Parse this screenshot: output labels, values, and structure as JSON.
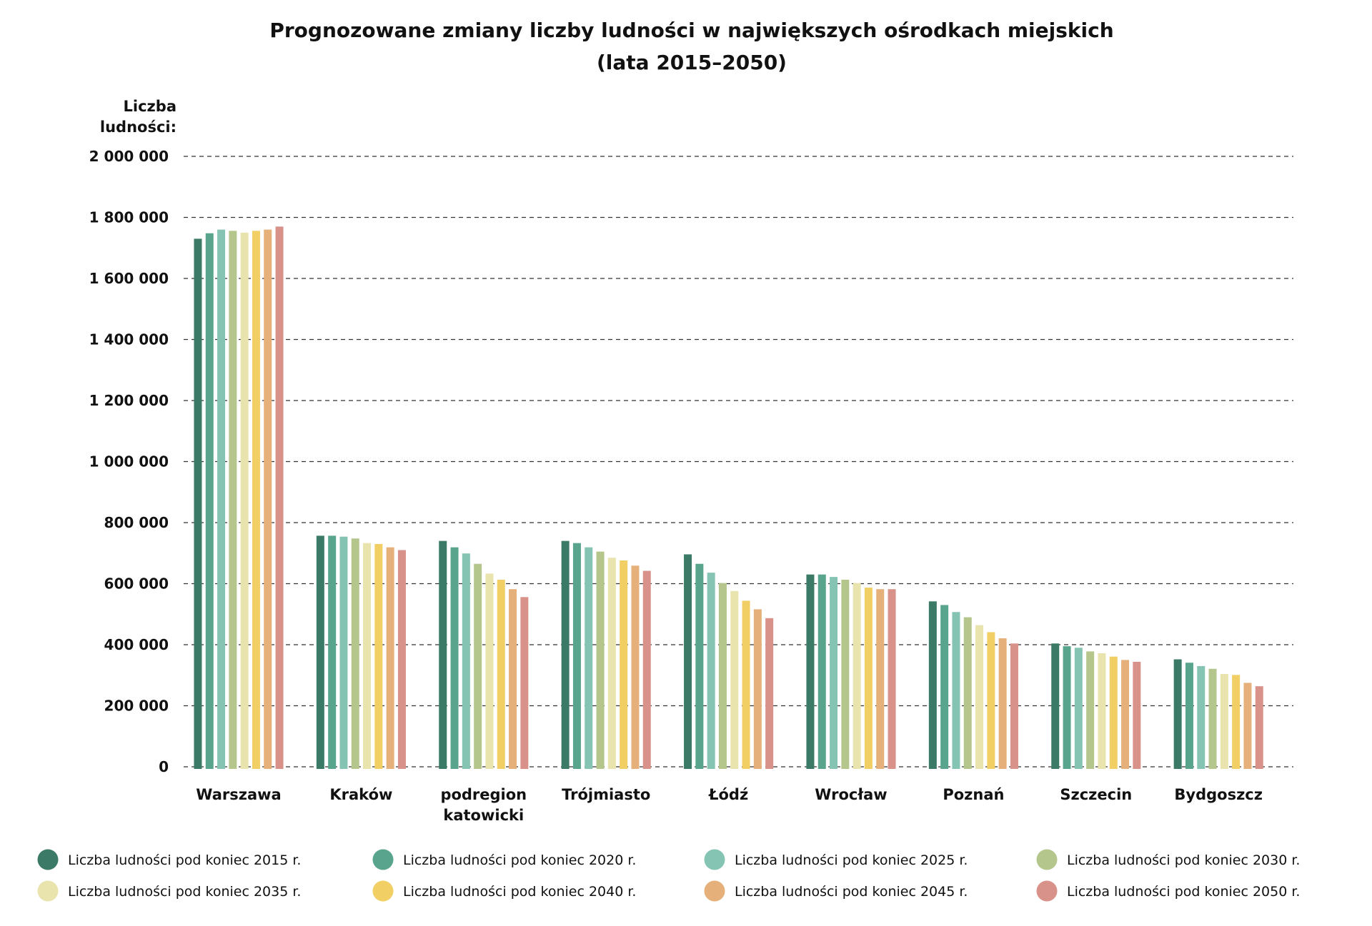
{
  "chart_data": {
    "type": "bar",
    "title": "Prognozowane zmiany liczby ludności w największych ośrodkach miejskich",
    "subtitle": "(lata 2015–2050)",
    "ylabel_line1": "Liczba",
    "ylabel_line2": "ludności:",
    "ylim": [
      0,
      2000000
    ],
    "grid": true,
    "legend_placement": "bottom",
    "y_ticks": [
      {
        "value": 0,
        "label": "0"
      },
      {
        "value": 200000,
        "label": "200 000"
      },
      {
        "value": 400000,
        "label": "400 000"
      },
      {
        "value": 600000,
        "label": "600 000"
      },
      {
        "value": 800000,
        "label": "800 000"
      },
      {
        "value": 1000000,
        "label": "1 000 000"
      },
      {
        "value": 1200000,
        "label": "1 200 000"
      },
      {
        "value": 1400000,
        "label": "1 400 000"
      },
      {
        "value": 1600000,
        "label": "1 600 000"
      },
      {
        "value": 1800000,
        "label": "1 800 000"
      },
      {
        "value": 2000000,
        "label": "2 000 000"
      }
    ],
    "categories": [
      [
        "Warszawa"
      ],
      [
        "Kraków"
      ],
      [
        "podregion",
        "katowicki"
      ],
      [
        "Trójmiasto"
      ],
      [
        "Łódź"
      ],
      [
        "Wrocław"
      ],
      [
        "Poznań"
      ],
      [
        "Szczecin"
      ],
      [
        "Bydgoszcz"
      ]
    ],
    "series": [
      {
        "name": "Liczba ludności pod koniec 2015 r.",
        "color": "#3a7a66",
        "values": [
          1730000,
          757000,
          740000,
          740000,
          696000,
          630000,
          542000,
          404000,
          352000
        ]
      },
      {
        "name": "Liczba ludności pod koniec 2020 r.",
        "color": "#58a48c",
        "values": [
          1748000,
          757000,
          719000,
          733000,
          665000,
          630000,
          530000,
          395000,
          341000
        ]
      },
      {
        "name": "Liczba ludności pod koniec 2025 r.",
        "color": "#85c3b2",
        "values": [
          1760000,
          754000,
          699000,
          719000,
          636000,
          622000,
          507000,
          390000,
          330000
        ]
      },
      {
        "name": "Liczba ludności pod koniec 2030 r.",
        "color": "#b4c68c",
        "values": [
          1756000,
          748000,
          665000,
          705000,
          602000,
          613000,
          490000,
          378000,
          321000
        ]
      },
      {
        "name": "Liczba ludności pod koniec 2035 r.",
        "color": "#e9e3ad",
        "values": [
          1750000,
          733000,
          633000,
          685000,
          576000,
          602000,
          464000,
          372000,
          304000
        ]
      },
      {
        "name": "Liczba ludności pod koniec 2040 r.",
        "color": "#f1cf65",
        "values": [
          1756000,
          730000,
          613000,
          676000,
          544000,
          587000,
          441000,
          361000,
          301000
        ]
      },
      {
        "name": "Liczba ludności pod koniec 2045 r.",
        "color": "#e5b07a",
        "values": [
          1760000,
          719000,
          582000,
          659000,
          516000,
          582000,
          421000,
          350000,
          275000
        ]
      },
      {
        "name": "Liczba ludności pod koniec 2050 r.",
        "color": "#d8928a",
        "values": [
          1770000,
          710000,
          556000,
          642000,
          487000,
          582000,
          404000,
          344000,
          264000
        ]
      }
    ]
  }
}
